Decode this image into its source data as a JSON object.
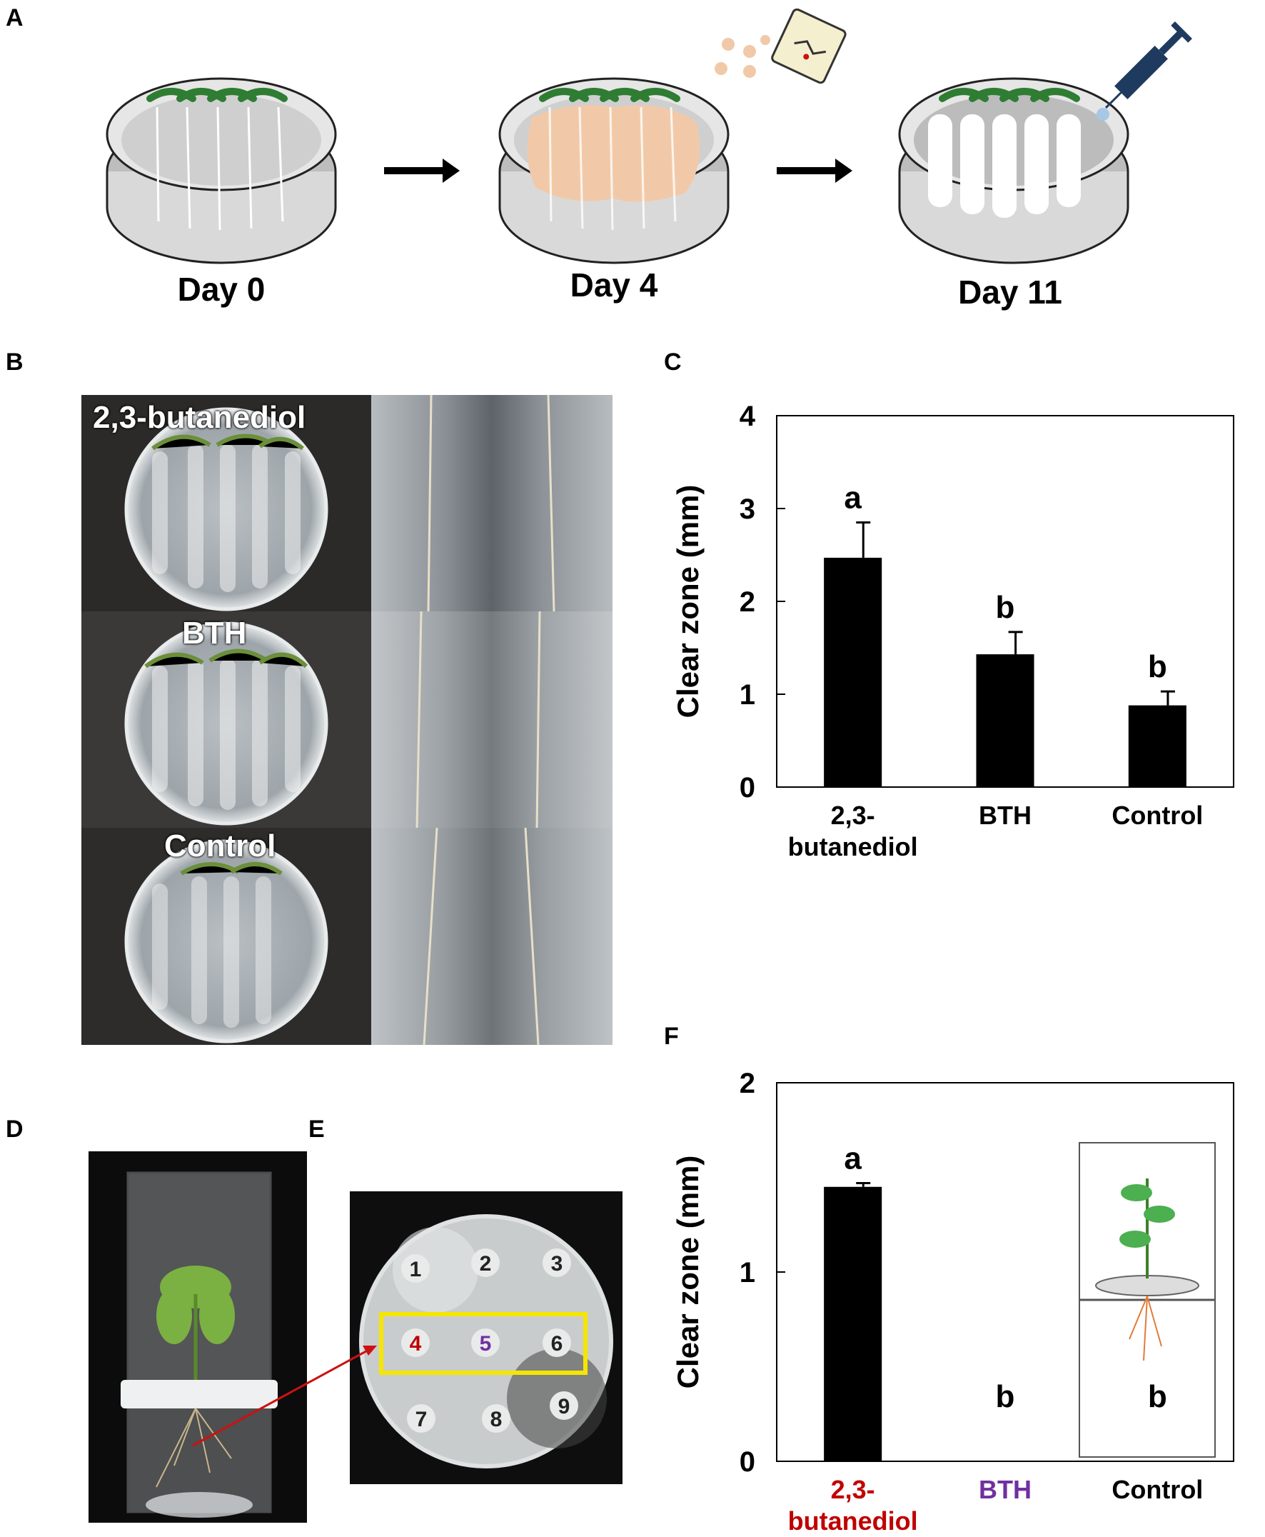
{
  "panels": {
    "a": "A",
    "b": "B",
    "c": "C",
    "d": "D",
    "e": "E",
    "f": "F"
  },
  "panel_a": {
    "days": [
      "Day 0",
      "Day 4",
      "Day 11"
    ]
  },
  "panel_b": {
    "labels": [
      "2,3-butanediol",
      "BTH",
      "Control"
    ]
  },
  "panel_e": {
    "wells": [
      "1",
      "2",
      "3",
      "4",
      "5",
      "6",
      "7",
      "8",
      "9"
    ]
  },
  "colors": {
    "bar": "#000000",
    "highlight_box": "#f5e600",
    "arrow": "#cc1111",
    "treatment_red": "#c00000",
    "treatment_purple": "#7030a0"
  },
  "chart_data": [
    {
      "type": "bar",
      "panel": "C",
      "categories": [
        "2,3-\nbutanediol",
        "BTH",
        "Control"
      ],
      "values": [
        2.47,
        1.43,
        0.88
      ],
      "errors": [
        0.38,
        0.24,
        0.15
      ],
      "letters": [
        "a",
        "b",
        "b"
      ],
      "ylabel": "Clear zone (mm)",
      "ylim": [
        0,
        4
      ],
      "yticks": [
        "0",
        "1",
        "2",
        "3",
        "4"
      ],
      "grid": false
    },
    {
      "type": "bar",
      "panel": "F",
      "categories": [
        "2,3-\nbutanediol",
        "BTH",
        "Control"
      ],
      "category_colors": [
        "#c00000",
        "#7030a0",
        "#000000"
      ],
      "values": [
        1.45,
        0,
        0
      ],
      "errors": [
        0.02,
        0,
        0
      ],
      "letters": [
        "a",
        "b",
        "b"
      ],
      "ylabel": "Clear zone (mm)",
      "ylim": [
        0,
        2
      ],
      "yticks": [
        "0",
        "1",
        "2"
      ],
      "grid": false
    }
  ]
}
